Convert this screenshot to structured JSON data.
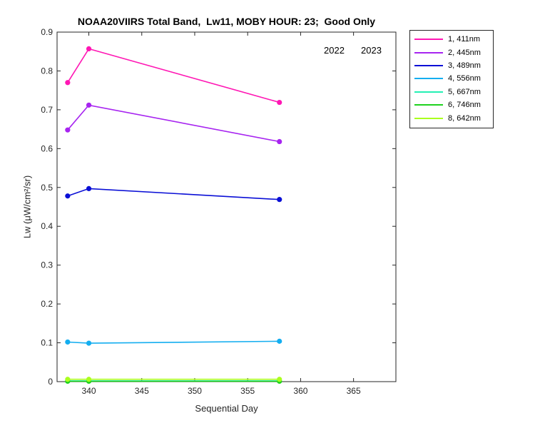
{
  "chart_data": {
    "type": "line",
    "title": "NOAA20VIIRS Total Band,  Lw11, MOBY HOUR: 23;  Good Only",
    "xlabel": "Sequential Day",
    "ylabel": "Lw (μW/cm²/sr)",
    "xlim": [
      337,
      369
    ],
    "ylim": [
      0,
      0.9
    ],
    "xticks": [
      340,
      345,
      350,
      355,
      360,
      365
    ],
    "yticks": [
      0,
      0.1,
      0.2,
      0.3,
      0.4,
      0.5,
      0.6,
      0.7,
      0.8,
      0.9
    ],
    "annotations": [
      "2022",
      "2023"
    ],
    "legend_position": "outside-top-right",
    "x": [
      338,
      340,
      358
    ],
    "series": [
      {
        "name": "1, 411nm",
        "color": "#ff17b4",
        "values": [
          0.77,
          0.857,
          0.719
        ]
      },
      {
        "name": "2, 445nm",
        "color": "#a724f0",
        "values": [
          0.648,
          0.712,
          0.618
        ]
      },
      {
        "name": "3, 489nm",
        "color": "#0a0fd6",
        "values": [
          0.478,
          0.497,
          0.469
        ]
      },
      {
        "name": "4, 556nm",
        "color": "#14aef0",
        "values": [
          0.102,
          0.099,
          0.104
        ]
      },
      {
        "name": "5, 667nm",
        "color": "#24f0b4",
        "values": [
          0.002,
          0.002,
          0.002
        ]
      },
      {
        "name": "6, 746nm",
        "color": "#1ed21e",
        "values": [
          0.001,
          0.001,
          0.001
        ]
      },
      {
        "name": "8, 642nm",
        "color": "#aaff1e",
        "values": [
          0.006,
          0.006,
          0.006
        ]
      }
    ]
  }
}
